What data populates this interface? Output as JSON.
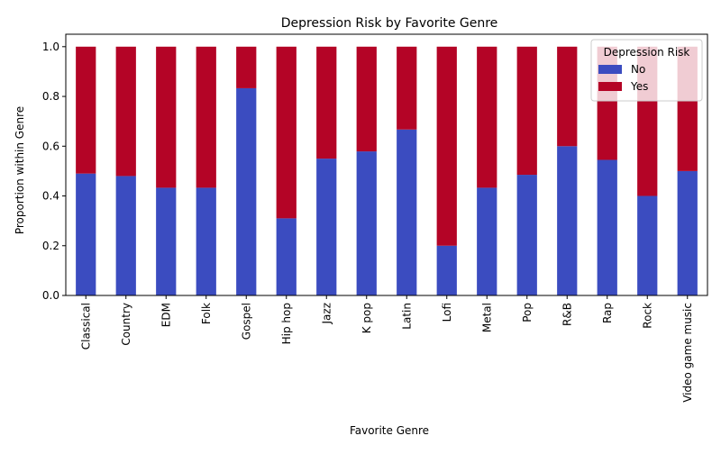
{
  "chart_data": {
    "type": "bar",
    "stacked": true,
    "title": "Depression Risk by Favorite Genre",
    "xlabel": "Favorite Genre",
    "ylabel": "Proportion within Genre",
    "ylim": [
      0,
      1.05
    ],
    "yticks": [
      "0.0",
      "0.2",
      "0.4",
      "0.6",
      "0.8",
      "1.0"
    ],
    "categories": [
      "Classical",
      "Country",
      "EDM",
      "Folk",
      "Gospel",
      "Hip hop",
      "Jazz",
      "K pop",
      "Latin",
      "Lofi",
      "Metal",
      "Pop",
      "R&B",
      "Rap",
      "Rock",
      "Video game music"
    ],
    "series": [
      {
        "name": "No",
        "color": "#3b4cc0",
        "values": [
          0.49,
          0.48,
          0.433,
          0.433,
          0.833,
          0.31,
          0.55,
          0.579,
          0.667,
          0.2,
          0.433,
          0.485,
          0.6,
          0.545,
          0.4,
          0.5
        ]
      },
      {
        "name": "Yes",
        "color": "#b40426",
        "values": [
          0.51,
          0.52,
          0.567,
          0.567,
          0.167,
          0.69,
          0.45,
          0.421,
          0.333,
          0.8,
          0.567,
          0.515,
          0.4,
          0.455,
          0.6,
          0.5
        ]
      }
    ],
    "legend": {
      "title": "Depression Risk",
      "position": "top-right"
    },
    "grid": false
  }
}
